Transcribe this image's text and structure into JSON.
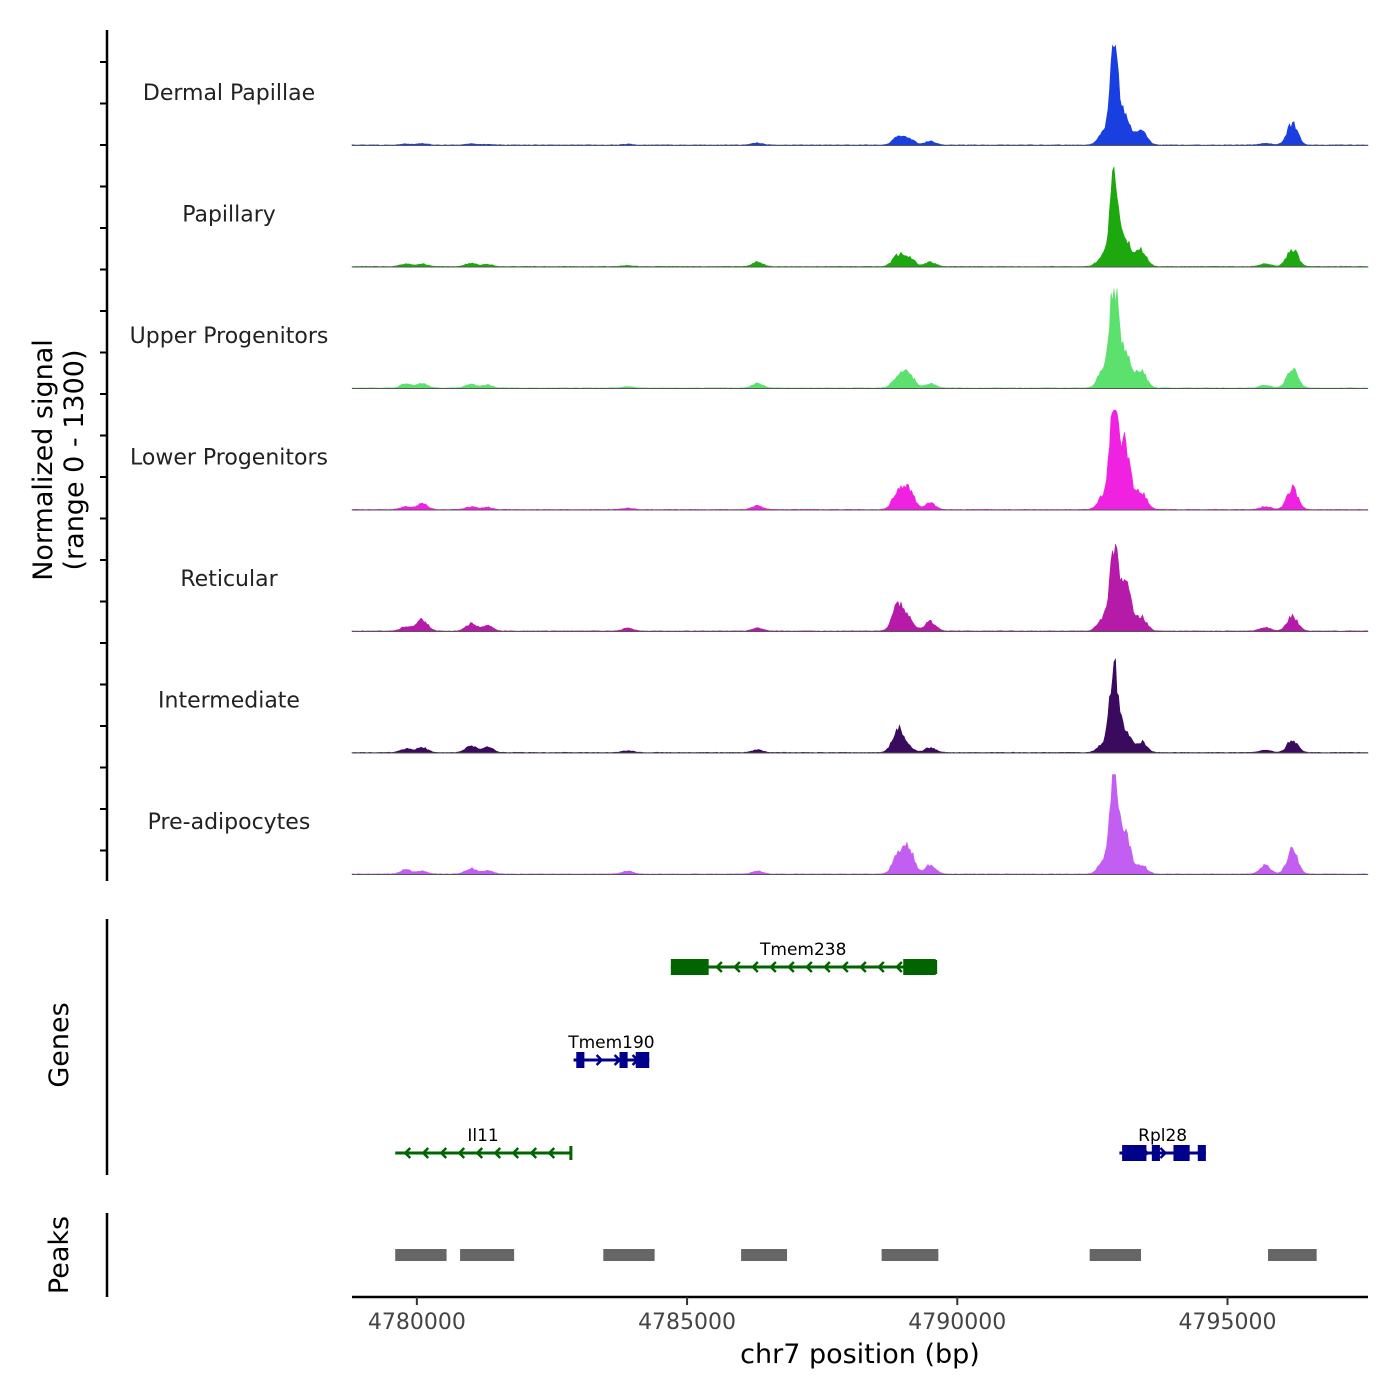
{
  "chart_data": {
    "type": "area",
    "title": "",
    "xlabel": "chr7 position (bp)",
    "ylabel": "Normalized signal",
    "ylabel_range": "(range 0 - 1300)",
    "xlim": [
      4778800,
      4797600
    ],
    "ylim": [
      0,
      1300
    ],
    "x_ticks": [
      4780000,
      4785000,
      4790000,
      4795000
    ],
    "x_tick_labels": [
      "4780000",
      "4785000",
      "4790000",
      "4795000"
    ],
    "signal_peaks_bp": [
      4779800,
      4780100,
      4781000,
      4781300,
      4783900,
      4786300,
      4788900,
      4789100,
      4789500,
      4792700,
      4792900,
      4793100,
      4793400,
      4795700,
      4796200
    ],
    "series": [
      {
        "name": "Dermal Papillae",
        "color": "#1a3fe0",
        "values": [
          15,
          20,
          15,
          10,
          12,
          30,
          110,
          90,
          50,
          150,
          1270,
          380,
          230,
          25,
          290
        ]
      },
      {
        "name": "Papillary",
        "color": "#1ea80f",
        "values": [
          40,
          35,
          45,
          30,
          15,
          60,
          150,
          130,
          60,
          150,
          1270,
          380,
          230,
          40,
          250
        ]
      },
      {
        "name": "Upper Progenitors",
        "color": "#5ce06e",
        "values": [
          60,
          70,
          50,
          40,
          20,
          60,
          160,
          210,
          60,
          250,
          1350,
          500,
          250,
          40,
          280
        ]
      },
      {
        "name": "Lower Progenitors",
        "color": "#f022e2",
        "values": [
          40,
          80,
          40,
          30,
          20,
          50,
          240,
          280,
          90,
          180,
          1340,
          900,
          250,
          40,
          300
        ]
      },
      {
        "name": "Reticular",
        "color": "#b51ba8",
        "values": [
          60,
          160,
          100,
          80,
          40,
          40,
          370,
          170,
          130,
          170,
          1060,
          720,
          200,
          50,
          210
        ]
      },
      {
        "name": "Intermediate",
        "color": "#3a0a5e",
        "values": [
          50,
          70,
          90,
          80,
          25,
          35,
          330,
          70,
          70,
          120,
          1110,
          330,
          150,
          35,
          170
        ]
      },
      {
        "name": "Pre-adipocytes",
        "color": "#c25ef2",
        "values": [
          60,
          40,
          80,
          50,
          40,
          40,
          260,
          360,
          120,
          160,
          1340,
          570,
          130,
          120,
          330
        ]
      }
    ],
    "genes": [
      {
        "name": "Tmem238",
        "start": 4784700,
        "end": 4789600,
        "strand": "-",
        "color": "#006400",
        "row": 1,
        "exons": [
          [
            4784700,
            4785400
          ],
          [
            4789000,
            4789600
          ]
        ]
      },
      {
        "name": "Tmem190",
        "start": 4782900,
        "end": 4784300,
        "strand": "+",
        "color": "#00008b",
        "row": 2,
        "exons": [
          [
            4782950,
            4783100
          ],
          [
            4783750,
            4783900
          ],
          [
            4784050,
            4784300
          ]
        ]
      },
      {
        "name": "Il11",
        "start": 4779600,
        "end": 4782850,
        "strand": "-",
        "color": "#006400",
        "row": 3,
        "exons": []
      },
      {
        "name": "Rpl28",
        "start": 4793000,
        "end": 4794600,
        "strand": "+",
        "color": "#00008b",
        "row": 3,
        "exons": [
          [
            4793050,
            4793500
          ],
          [
            4793600,
            4793750
          ],
          [
            4794000,
            4794300
          ],
          [
            4794450,
            4794600
          ]
        ]
      }
    ],
    "peaks": [
      [
        4779600,
        4780550
      ],
      [
        4780800,
        4781800
      ],
      [
        4783450,
        4784400
      ],
      [
        4786000,
        4786850
      ],
      [
        4788600,
        4789650
      ],
      [
        4792450,
        4793400
      ],
      [
        4795750,
        4796650
      ]
    ],
    "panel_labels": {
      "genes": "Genes",
      "peaks": "Peaks"
    }
  }
}
